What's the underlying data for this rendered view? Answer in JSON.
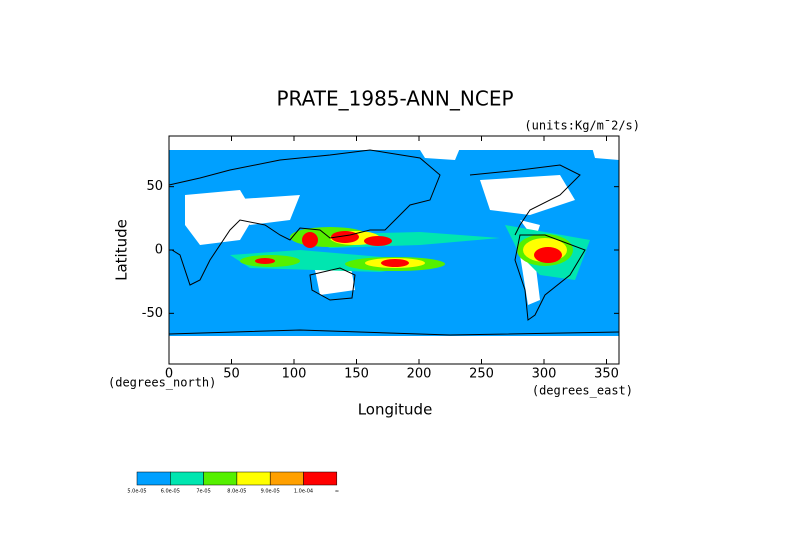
{
  "chart_data": {
    "type": "map",
    "title": "PRATE_1985-ANN_NCEP",
    "units": "(units:Kg/m¯2/s)",
    "xlabel": "Longitude",
    "ylabel": "Latitude",
    "xunits": "(degrees_east)",
    "yunits": "(degrees_north)",
    "xlim": [
      0,
      360
    ],
    "ylim": [
      -90,
      90
    ],
    "xticks": [
      0,
      50,
      100,
      150,
      200,
      250,
      300,
      350
    ],
    "yticks": [
      -50,
      0,
      50
    ],
    "colorbar": {
      "colors": [
        "#00a0ff",
        "#00e6b0",
        "#55f000",
        "#ffff00",
        "#ffa000",
        "#ff0000"
      ],
      "labels": [
        "5.0e-05",
        "6.0e-05",
        "7e-05",
        "8.0e-05",
        "9.0e-05",
        "1.0e-04",
        "∞"
      ]
    }
  }
}
